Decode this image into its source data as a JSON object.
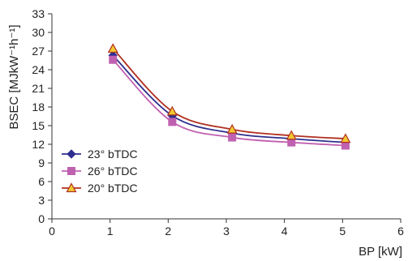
{
  "chart_data": {
    "type": "line",
    "xlabel": "BP [kW]",
    "ylabel": "BSEC [MJkW⁻¹h⁻¹]",
    "xlim": [
      0,
      6
    ],
    "ylim": [
      0,
      33
    ],
    "xticks": [
      0,
      1,
      2,
      3,
      4,
      5,
      6
    ],
    "yticks": [
      0,
      3,
      6,
      9,
      12,
      15,
      18,
      21,
      24,
      27,
      30,
      33
    ],
    "grid": false,
    "legend_position": "left",
    "series": [
      {
        "name": "23° bTDC",
        "marker": "diamond",
        "color": "#2e2e8f",
        "x": [
          1.05,
          2.07,
          3.1,
          4.12,
          5.05
        ],
        "values": [
          26.3,
          16.6,
          13.8,
          12.9,
          12.3
        ]
      },
      {
        "name": "26° bTDC",
        "marker": "square",
        "color": "#c060b0",
        "x": [
          1.05,
          2.07,
          3.1,
          4.12,
          5.05
        ],
        "values": [
          25.6,
          15.6,
          13.1,
          12.3,
          11.8
        ]
      },
      {
        "name": "20° bTDC",
        "marker": "triangle",
        "color": "#b03020",
        "x": [
          1.05,
          2.07,
          3.1,
          4.12,
          5.05
        ],
        "values": [
          27.4,
          17.3,
          14.4,
          13.4,
          12.9
        ]
      }
    ]
  }
}
